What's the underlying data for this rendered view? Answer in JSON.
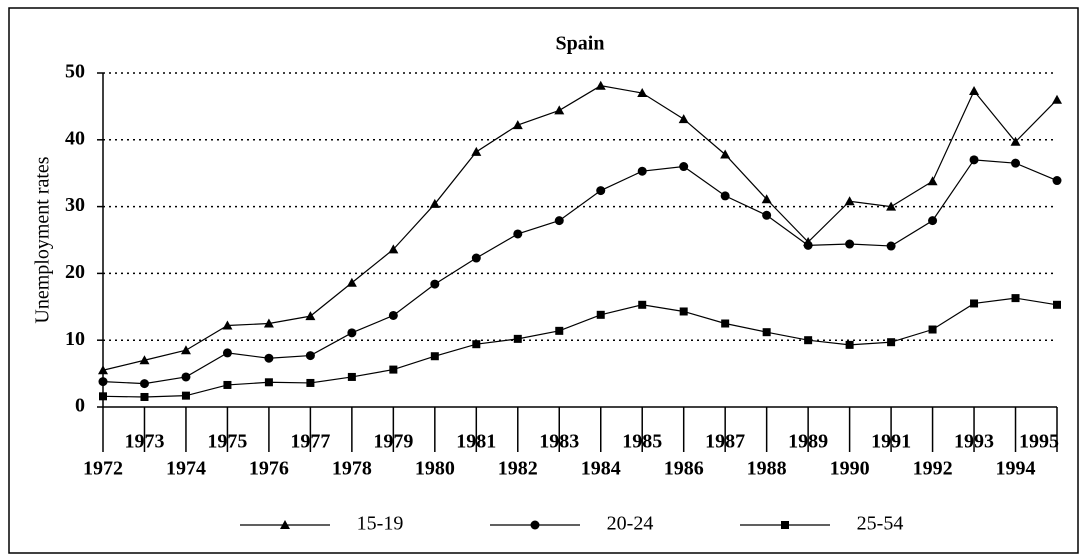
{
  "chart_data": {
    "type": "line",
    "title": "Spain",
    "y_label": "Unemployment rates",
    "x": [
      1972,
      1973,
      1974,
      1975,
      1976,
      1977,
      1978,
      1979,
      1980,
      1981,
      1982,
      1983,
      1984,
      1985,
      1986,
      1987,
      1988,
      1989,
      1990,
      1991,
      1992,
      1993,
      1994,
      1995
    ],
    "xlim": [
      1972,
      1995
    ],
    "xticks": [
      1972,
      1973,
      1974,
      1975,
      1976,
      1977,
      1978,
      1979,
      1980,
      1981,
      1982,
      1983,
      1984,
      1985,
      1986,
      1987,
      1988,
      1989,
      1990,
      1991,
      1992,
      1993,
      1994,
      1995
    ],
    "ylim": [
      0,
      50
    ],
    "yticks": [
      0,
      10,
      20,
      30,
      40,
      50
    ],
    "grid": true,
    "series": [
      {
        "name": "15-19",
        "color": "#000000",
        "marker": "triangle",
        "values": [
          5.5,
          7,
          8.5,
          12.2,
          12.5,
          13.6,
          18.6,
          23.6,
          30.4,
          38.2,
          42.2,
          44.4,
          48.1,
          47.0,
          43.1,
          37.8,
          31.1,
          24.7,
          30.8,
          30.0,
          33.8,
          47.3,
          39.7,
          46.0
        ]
      },
      {
        "name": "20-24",
        "color": "#000000",
        "marker": "circle",
        "values": [
          3.8,
          3.5,
          4.5,
          8.1,
          7.3,
          7.7,
          11.1,
          13.7,
          18.4,
          22.3,
          25.9,
          27.9,
          32.4,
          35.3,
          36.0,
          31.6,
          28.7,
          24.2,
          24.4,
          24.1,
          27.9,
          37.0,
          36.5,
          33.9
        ]
      },
      {
        "name": "25-54",
        "color": "#000000",
        "marker": "square",
        "values": [
          1.6,
          1.5,
          1.7,
          3.3,
          3.7,
          3.6,
          4.5,
          5.6,
          7.6,
          9.4,
          10.2,
          11.4,
          13.8,
          15.3,
          14.3,
          12.5,
          11.2,
          10.0,
          9.3,
          9.7,
          11.6,
          15.5,
          16.3,
          15.3
        ]
      }
    ]
  }
}
